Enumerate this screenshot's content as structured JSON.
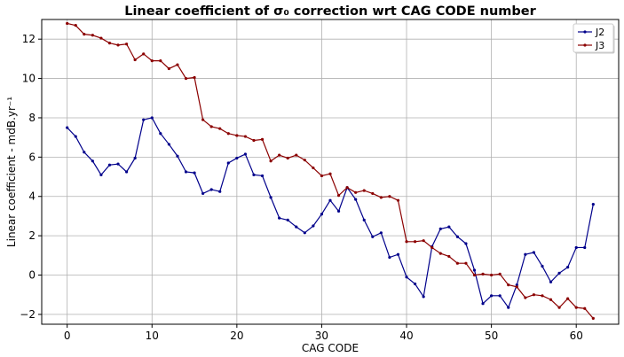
{
  "chart_data": {
    "type": "line",
    "title": "Linear coefficient of σ₀ correction wrt CAG CODE number",
    "xlabel": "CAG CODE",
    "ylabel": "Linear coefficient - mdB.yr⁻¹",
    "xlim": [
      -3,
      65
    ],
    "ylim": [
      -2.5,
      13
    ],
    "xticks": [
      0,
      10,
      20,
      30,
      40,
      50,
      60
    ],
    "yticks": [
      -2,
      0,
      2,
      4,
      6,
      8,
      10,
      12
    ],
    "grid": true,
    "legend_position": "top-right",
    "x": [
      0,
      1,
      2,
      3,
      4,
      5,
      6,
      7,
      8,
      9,
      10,
      11,
      12,
      13,
      14,
      15,
      16,
      17,
      18,
      19,
      20,
      21,
      22,
      23,
      24,
      25,
      26,
      27,
      28,
      29,
      30,
      31,
      32,
      33,
      34,
      35,
      36,
      37,
      38,
      39,
      40,
      41,
      42,
      43,
      44,
      45,
      46,
      47,
      48,
      49,
      50,
      51,
      52,
      53,
      54,
      55,
      56,
      57,
      58,
      59,
      60,
      61,
      62
    ],
    "series": [
      {
        "name": "J2",
        "color": "#00008b",
        "values": [
          7.5,
          7.05,
          6.25,
          5.8,
          5.1,
          5.6,
          5.65,
          5.25,
          5.95,
          7.9,
          8.0,
          7.2,
          6.65,
          6.05,
          5.25,
          5.2,
          4.15,
          4.35,
          4.25,
          5.7,
          5.95,
          6.15,
          5.1,
          5.05,
          3.95,
          2.9,
          2.8,
          2.45,
          2.15,
          2.5,
          3.1,
          3.8,
          3.25,
          4.45,
          3.85,
          2.8,
          1.95,
          2.15,
          0.9,
          1.05,
          -0.1,
          -0.45,
          -1.1,
          1.45,
          2.35,
          2.45,
          1.95,
          1.6,
          0.25,
          -1.45,
          -1.05,
          -1.05,
          -1.65,
          -0.5,
          1.05,
          1.15,
          0.45,
          -0.35,
          0.1,
          0.4,
          1.4,
          1.4,
          3.6
        ]
      },
      {
        "name": "J3",
        "color": "#8b0000",
        "values": [
          12.8,
          12.7,
          12.25,
          12.2,
          12.05,
          11.8,
          11.7,
          11.75,
          10.95,
          11.25,
          10.9,
          10.9,
          10.5,
          10.7,
          10.0,
          10.05,
          7.9,
          7.55,
          7.45,
          7.2,
          7.1,
          7.05,
          6.85,
          6.9,
          5.8,
          6.1,
          5.95,
          6.1,
          5.85,
          5.45,
          5.05,
          5.15,
          4.05,
          4.45,
          4.2,
          4.3,
          4.15,
          3.95,
          4.0,
          3.8,
          1.7,
          1.7,
          1.75,
          1.4,
          1.1,
          0.95,
          0.6,
          0.6,
          0.0,
          0.05,
          0.0,
          0.05,
          -0.5,
          -0.6,
          -1.15,
          -1.0,
          -1.05,
          -1.25,
          -1.65,
          -1.2,
          -1.65,
          -1.7,
          -2.2
        ]
      }
    ]
  }
}
